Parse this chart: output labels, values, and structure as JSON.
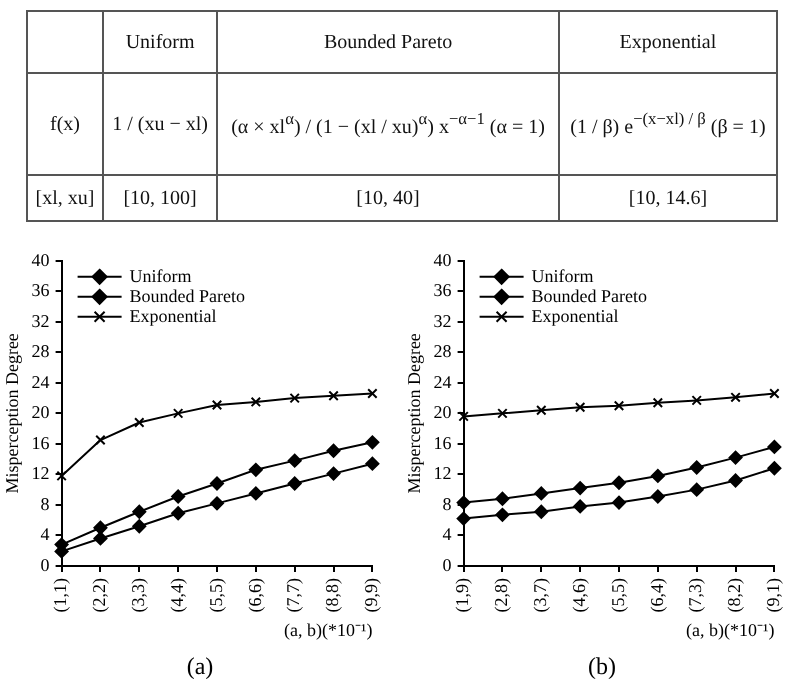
{
  "chart_data": [
    {
      "type": "other",
      "categories": [
        null,
        "Uniform",
        "Bounded Pareto",
        "Exponential"
      ],
      "y_categories": [
        "f(x)",
        "[xl, xu]"
      ],
      "cell_labels": [
        [
          "1 / (xu − xl)",
          "(α × xl$^{α}$) / (1 − (xl / xu)$^{α}$) x$^{−α−1}$ (α = 1)",
          "(1 / β) e$^{−(x−xl) / β}$ (β = 1)"
        ],
        [
          "[10, 100]",
          "[10, 40]",
          "[10, 14.6]"
        ]
      ]
    },
    {
      "type": "line",
      "categories": [
        "(1,1)",
        "(2,2)",
        "(3,3)",
        "(4,4)",
        "(5,5)",
        "(6,6)",
        "(7,7)",
        "(8,8)",
        "(9,9)"
      ],
      "xlabel": "(a, b)(*10⁻¹)",
      "ylabel": "Misperception Degree",
      "ylim": [
        0,
        40
      ],
      "yticks": [
        0,
        4,
        8,
        12,
        16,
        20,
        24,
        28,
        32,
        36,
        40
      ],
      "grid": false,
      "legend": "top left",
      "annotations": [
        "(a)"
      ],
      "series": [
        {
          "name": "Uniform",
          "color": "#000000",
          "marker": "diamond",
          "values": [
            1.9,
            3.6,
            5.2,
            6.9,
            8.2,
            9.5,
            10.8,
            12.1,
            13.4
          ]
        },
        {
          "name": "Bounded Pareto",
          "color": "#000000",
          "marker": "diamond",
          "values": [
            2.8,
            5.0,
            7.1,
            9.1,
            10.8,
            12.6,
            13.8,
            15.1,
            16.2
          ]
        },
        {
          "name": "Exponential",
          "color": "#000000",
          "marker": "cross",
          "values": [
            11.8,
            16.5,
            18.8,
            20.0,
            21.1,
            21.5,
            22.0,
            22.3,
            22.6
          ]
        }
      ]
    },
    {
      "type": "line",
      "categories": [
        "(1,9)",
        "(2,8)",
        "(3,7)",
        "(4,6)",
        "(5,5)",
        "(6,4)",
        "(7,3)",
        "(8,2)",
        "(9,1)"
      ],
      "xlabel": "(a, b)(*10⁻¹)",
      "ylabel": "Misperception Degree",
      "ylim": [
        0,
        40
      ],
      "yticks": [
        0,
        4,
        8,
        12,
        16,
        20,
        24,
        28,
        32,
        36,
        40
      ],
      "grid": false,
      "legend": "top left",
      "annotations": [
        "(b)"
      ],
      "series": [
        {
          "name": "Uniform",
          "color": "#000000",
          "marker": "diamond",
          "values": [
            6.2,
            6.7,
            7.1,
            7.8,
            8.3,
            9.1,
            10.0,
            11.2,
            12.8
          ]
        },
        {
          "name": "Bounded Pareto",
          "color": "#000000",
          "marker": "diamond",
          "values": [
            8.3,
            8.8,
            9.5,
            10.2,
            10.9,
            11.8,
            12.9,
            14.2,
            15.6
          ]
        },
        {
          "name": "Exponential",
          "color": "#000000",
          "marker": "cross",
          "values": [
            19.6,
            20.0,
            20.4,
            20.8,
            21.0,
            21.4,
            21.7,
            22.1,
            22.6
          ]
        }
      ]
    }
  ]
}
